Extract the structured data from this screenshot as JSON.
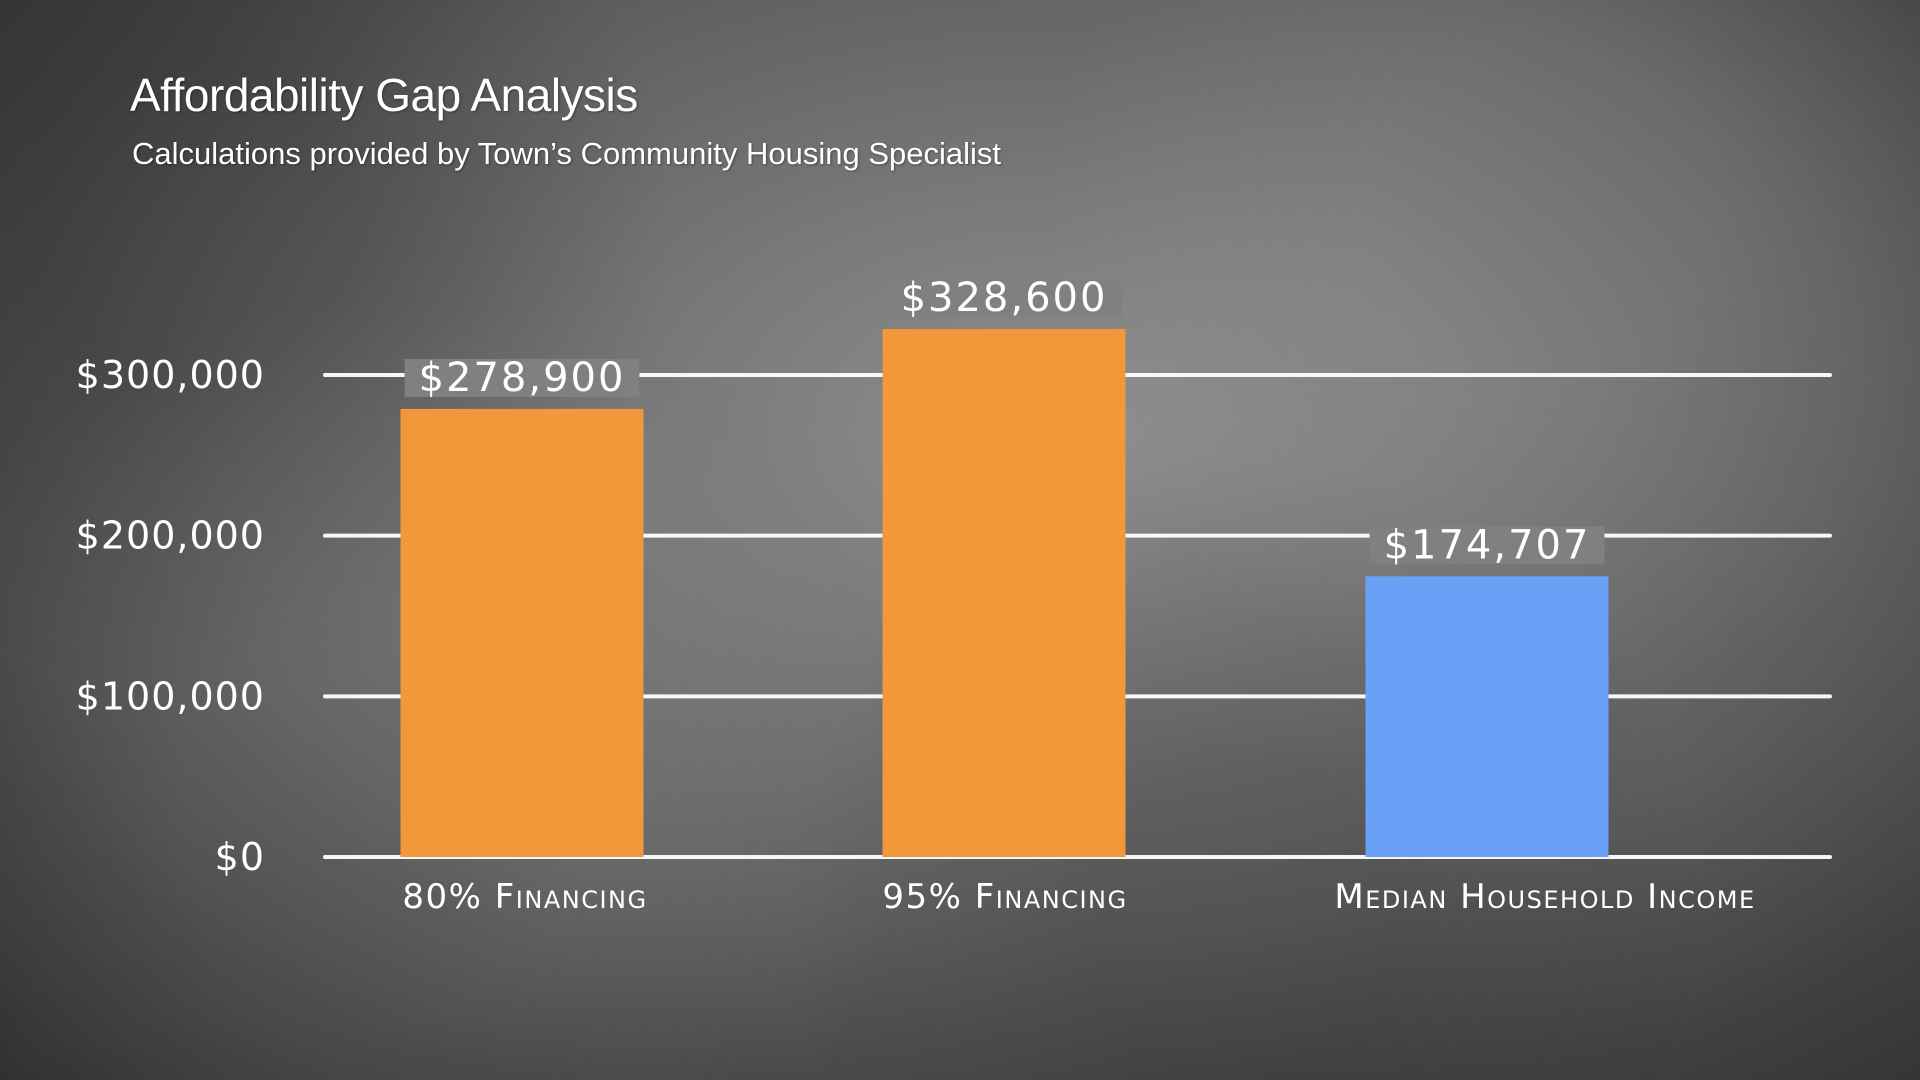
{
  "header": {
    "title": "Affordability Gap Analysis",
    "subtitle": "Calculations provided by Town’s Community Housing Specialist"
  },
  "chart_data": {
    "type": "bar",
    "title": "Affordability Gap Analysis",
    "subtitle": "Calculations provided by Town’s Community Housing Specialist",
    "categories": [
      "80% Financing",
      "95% Financing",
      "Median Household Income"
    ],
    "values": [
      278900,
      328600,
      174707
    ],
    "data_labels": [
      "$278,900",
      "$328,600",
      "$174,707"
    ],
    "bar_colors": [
      "#f0983a",
      "#f0983a",
      "#6aa0f5"
    ],
    "ylim": [
      0,
      300000
    ],
    "yticks": [
      0,
      100000,
      200000,
      300000
    ],
    "ytick_labels": [
      "$0",
      "$100,000",
      "$200,000",
      "$300,000"
    ],
    "xlabel": "",
    "ylabel": "",
    "grid": true,
    "legend": "none"
  }
}
